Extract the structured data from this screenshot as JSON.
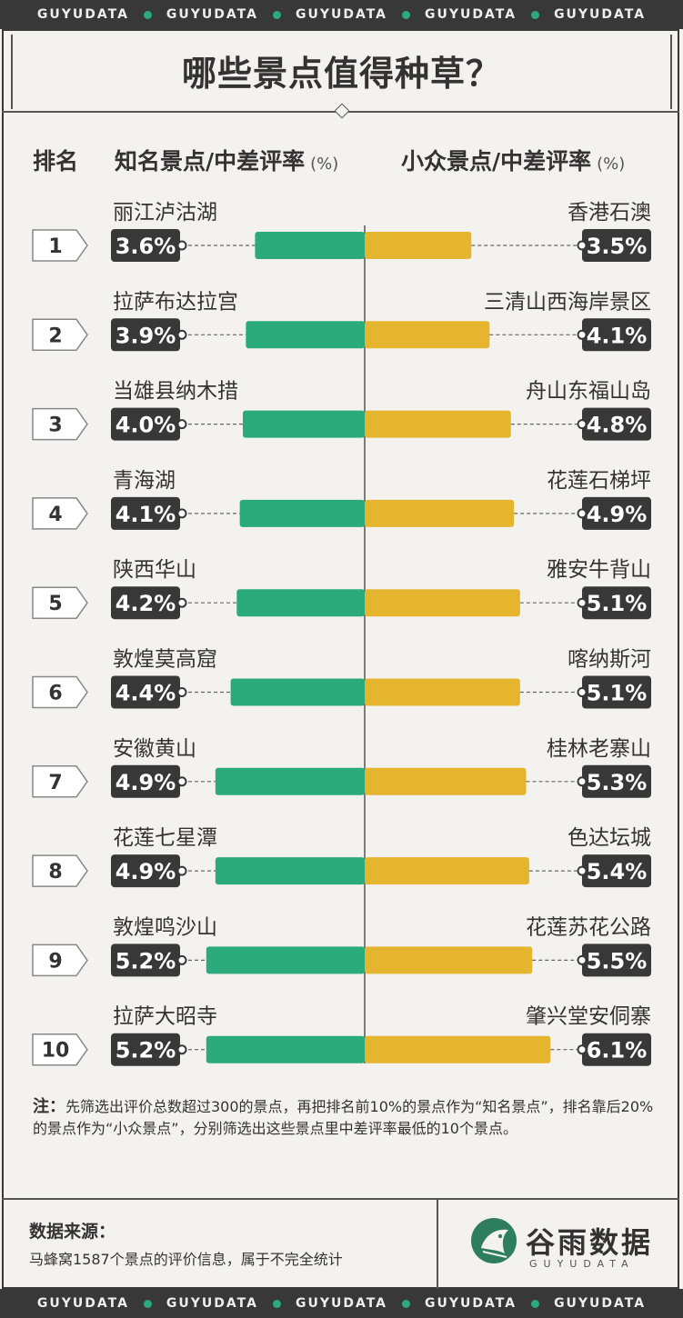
{
  "banner": {
    "text": "GUYUDATA",
    "repeat": 5
  },
  "title": "哪些景点值得种草？",
  "headers": {
    "rank": "排名",
    "famous": "知名景点/中差评率",
    "niche": "小众景点/中差评率",
    "unit": "(%)"
  },
  "colors": {
    "famous": "#2baa7e",
    "niche": "#e6b52f",
    "dark": "#383838",
    "background": "#f4f2ef"
  },
  "chart_data": {
    "type": "bar",
    "categories": [
      "1",
      "2",
      "3",
      "4",
      "5",
      "6",
      "7",
      "8",
      "9",
      "10"
    ],
    "series": [
      {
        "name": "知名景点/中差评率",
        "labels": [
          "丽江泸沽湖",
          "拉萨布达拉宫",
          "当雄县纳木措",
          "青海湖",
          "陕西华山",
          "敦煌莫高窟",
          "安徽黄山",
          "花莲七星潭",
          "敦煌鸣沙山",
          "拉萨大昭寺"
        ],
        "values": [
          3.6,
          3.9,
          4.0,
          4.1,
          4.2,
          4.4,
          4.9,
          4.9,
          5.2,
          5.2
        ],
        "value_labels": [
          "3.6%",
          "3.9%",
          "4.0%",
          "4.1%",
          "4.2%",
          "4.4%",
          "4.9%",
          "4.9%",
          "5.2%",
          "5.2%"
        ],
        "color": "#2baa7e",
        "direction": "left"
      },
      {
        "name": "小众景点/中差评率",
        "labels": [
          "香港石澳",
          "三清山西海岸景区",
          "舟山东福山岛",
          "花莲石梯坪",
          "雅安牛背山",
          "喀纳斯河",
          "桂林老寨山",
          "色达坛城",
          "花莲苏花公路",
          "肇兴堂安侗寨"
        ],
        "values": [
          3.5,
          4.1,
          4.8,
          4.9,
          5.1,
          5.1,
          5.3,
          5.4,
          5.5,
          6.1
        ],
        "value_labels": [
          "3.5%",
          "4.1%",
          "4.8%",
          "4.9%",
          "5.1%",
          "5.1%",
          "5.3%",
          "5.4%",
          "5.5%",
          "6.1%"
        ],
        "color": "#e6b52f",
        "direction": "right"
      }
    ],
    "xlim": [
      0,
      10
    ]
  },
  "note": {
    "label": "注：",
    "text": "先筛选出评价总数超过300的景点，再把排名前10%的景点作为“知名景点”，排名靠后20%的景点作为“小众景点”，分别筛选出这些景点里中差评率最低的10个景点。"
  },
  "source": {
    "label": "数据来源：",
    "text": "马蜂窝1587个景点的评价信息，属于不完全统计"
  },
  "logo": {
    "name": "谷雨数据",
    "sub": "GUYUDATA"
  }
}
